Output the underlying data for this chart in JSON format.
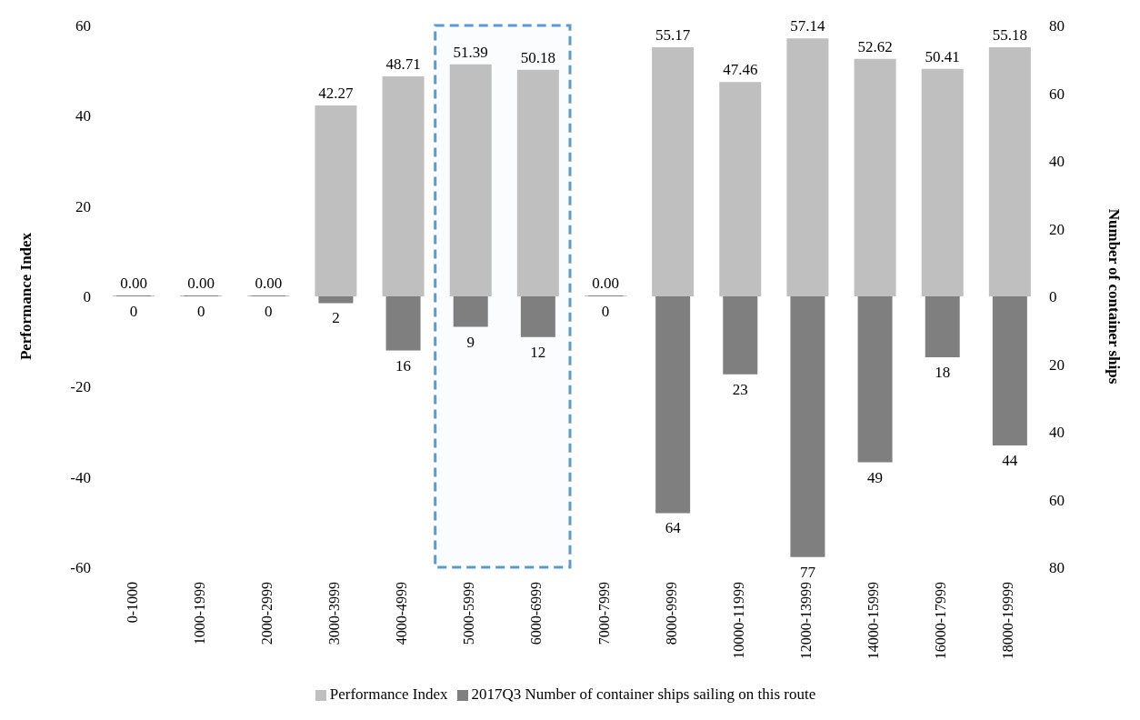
{
  "chart_data": {
    "type": "bar",
    "ylabel": "Performance Index",
    "y2label": "Number of container ships",
    "categories": [
      "0-1000",
      "1000-1999",
      "2000-2999",
      "3000-3999",
      "4000-4999",
      "5000-5999",
      "6000-6999",
      "7000-7999",
      "8000-9999",
      "10000-11999",
      "12000-13999",
      "14000-15999",
      "16000-17999",
      "18000-19999"
    ],
    "series": [
      {
        "name": "Performance Index",
        "color": "#bfbfbf",
        "values": [
          0,
          0,
          0,
          42.27,
          48.71,
          51.39,
          50.18,
          0,
          55.17,
          47.46,
          57.14,
          52.62,
          50.41,
          55.18
        ],
        "value_labels": [
          "0.00",
          "0.00",
          "0.00",
          "42.27",
          "48.71",
          "51.39",
          "50.18",
          "0.00",
          "55.17",
          "47.46",
          "57.14",
          "52.62",
          "50.41",
          "55.18"
        ]
      },
      {
        "name": "2017Q3 Number of container ships sailing on this route",
        "color": "#7f7f7f",
        "axis": "y2",
        "values": [
          0,
          0,
          0,
          2,
          16,
          9,
          12,
          0,
          64,
          23,
          77,
          49,
          18,
          44
        ],
        "value_labels": [
          "0",
          "0",
          "0",
          "2",
          "16",
          "9",
          "12",
          "0",
          "64",
          "23",
          "77",
          "49",
          "18",
          "44"
        ]
      }
    ],
    "ylim": [
      -60,
      60
    ],
    "yticks": [
      -60,
      -40,
      -20,
      0,
      20,
      40,
      60
    ],
    "y2lim": [
      80,
      -80
    ],
    "y2ticks": [
      {
        "value": -80,
        "label": "80"
      },
      {
        "value": -60,
        "label": "60"
      },
      {
        "value": -40,
        "label": "40"
      },
      {
        "value": -20,
        "label": "20"
      },
      0,
      20,
      40,
      60,
      80
    ],
    "bands": [
      {
        "axis": "x",
        "from": "5000-5999",
        "to": "6000-6999",
        "color": "#5b9bd5"
      }
    ],
    "legend": "bottom"
  }
}
